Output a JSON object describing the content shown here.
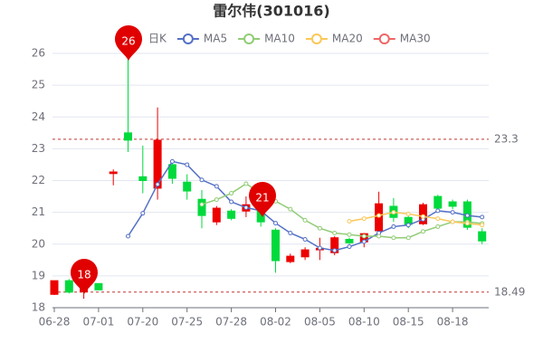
{
  "chart_data": {
    "type": "candlestick",
    "title": "雷尔伟(301016)",
    "categories": [
      "06-28",
      null,
      null,
      "07-01",
      null,
      null,
      "07-20",
      null,
      null,
      "07-25",
      null,
      null,
      "07-28",
      null,
      null,
      "08-02",
      null,
      null,
      "08-05",
      null,
      null,
      "08-10",
      null,
      null,
      "08-15",
      null,
      null,
      "08-18",
      null,
      null
    ],
    "series": [
      {
        "name": "日K",
        "up_color": "#ec0000",
        "down_color": "#00da3c",
        "open": [
          18.42,
          18.85,
          18.5,
          18.76,
          22.22,
          23.5,
          22.12,
          21.76,
          22.5,
          21.95,
          21.41,
          20.7,
          21.04,
          21.04,
          21.19,
          20.44,
          19.45,
          19.6,
          19.82,
          19.73,
          20.15,
          20.07,
          20.42,
          21.19,
          20.84,
          20.64,
          21.5,
          21.33,
          21.33,
          20.39
        ],
        "close": [
          18.85,
          18.49,
          18.65,
          18.56,
          22.27,
          23.27,
          22.0,
          23.27,
          22.07,
          21.67,
          20.9,
          21.13,
          20.81,
          21.24,
          20.7,
          19.48,
          19.62,
          19.82,
          19.87,
          20.2,
          20.04,
          20.33,
          21.27,
          20.84,
          20.62,
          21.24,
          21.13,
          21.19,
          20.53,
          20.1
        ],
        "high": [
          18.85,
          18.9,
          18.7,
          18.77,
          22.35,
          25.9,
          23.1,
          24.3,
          22.6,
          22.2,
          21.7,
          21.2,
          21.1,
          21.5,
          21.3,
          20.5,
          19.7,
          19.9,
          20.2,
          20.25,
          20.2,
          20.35,
          21.65,
          21.45,
          20.9,
          21.3,
          21.55,
          21.4,
          21.4,
          20.5
        ],
        "low": [
          18.4,
          18.45,
          18.28,
          18.55,
          21.85,
          22.9,
          21.6,
          21.4,
          21.9,
          21.4,
          20.5,
          20.6,
          20.75,
          20.85,
          20.55,
          19.1,
          19.4,
          19.5,
          19.5,
          19.65,
          20.0,
          19.9,
          20.3,
          20.7,
          20.5,
          20.6,
          21.05,
          21.1,
          20.45,
          20.0
        ]
      },
      {
        "name": "MA5",
        "color": "#5470c6",
        "values": [
          null,
          null,
          null,
          null,
          null,
          20.25,
          20.97,
          21.88,
          22.6,
          22.5,
          22.02,
          21.82,
          21.33,
          21.15,
          21.05,
          20.66,
          20.35,
          20.15,
          19.88,
          19.8,
          19.92,
          20.08,
          20.35,
          20.55,
          20.6,
          20.78,
          21.05,
          21.0,
          20.9,
          20.85
        ]
      },
      {
        "name": "MA10",
        "color": "#91cc75",
        "values": [
          null,
          null,
          null,
          null,
          null,
          null,
          null,
          null,
          null,
          null,
          21.25,
          21.4,
          21.6,
          21.9,
          21.6,
          21.35,
          21.1,
          20.75,
          20.5,
          20.35,
          20.3,
          20.25,
          20.25,
          20.2,
          20.2,
          20.4,
          20.55,
          20.7,
          20.7,
          20.65
        ]
      },
      {
        "name": "MA20",
        "color": "#fac858",
        "values": [
          null,
          null,
          null,
          null,
          null,
          null,
          null,
          null,
          null,
          null,
          null,
          null,
          null,
          null,
          null,
          null,
          null,
          null,
          null,
          null,
          20.72,
          20.8,
          20.9,
          21.0,
          20.95,
          20.87,
          20.8,
          20.7,
          20.65,
          20.6
        ]
      },
      {
        "name": "MA30",
        "color": "#ee6666",
        "values": [
          null,
          null,
          null,
          null,
          null,
          null,
          null,
          null,
          null,
          null,
          null,
          null,
          null,
          null,
          null,
          null,
          null,
          null,
          null,
          null,
          null,
          null,
          null,
          null,
          null,
          null,
          null,
          null,
          null,
          null
        ]
      }
    ],
    "ylim": [
      18,
      26
    ],
    "yticks": [
      18,
      19,
      20,
      21,
      22,
      23,
      24,
      25,
      26
    ],
    "grid": true,
    "mark_lines": [
      23.3,
      18.49
    ],
    "annotations": [
      "26",
      "18",
      "21"
    ]
  }
}
